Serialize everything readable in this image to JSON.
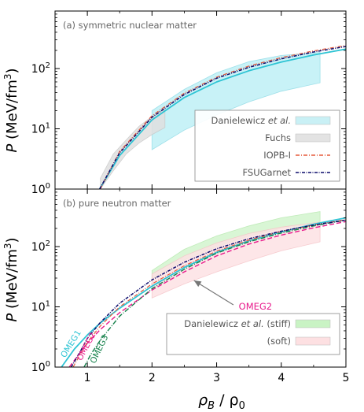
{
  "figure": {
    "xlabel_base": "ρ",
    "xlabel_sub": "B",
    "xlabel_sep": " / ρ",
    "xlabel_sub2": "0",
    "ylabel": "P",
    "ylabel_unit": "(MeV/fm",
    "ylabel_exp": "3",
    "ylabel_close": ")"
  },
  "chart_data": [
    {
      "type": "line",
      "panel": "a",
      "title": "(a) symmetric nuclear matter",
      "xlabel": "ρB / ρ0",
      "ylabel": "P (MeV/fm3)",
      "xlim": [
        0.5,
        5
      ],
      "ylim": [
        1,
        900
      ],
      "yscale": "log",
      "xticks": [
        "1",
        "2",
        "3",
        "4",
        "5"
      ],
      "yticks": [
        {
          "v": 1,
          "base": "10",
          "exp": "0"
        },
        {
          "v": 10,
          "base": "10",
          "exp": "1"
        },
        {
          "v": 100,
          "base": "10",
          "exp": "2"
        }
      ],
      "legend_position": "bottom-right",
      "legend": [
        {
          "label": "Danielewicz ",
          "label_italic": "et al.",
          "label_tail": "",
          "kind": "band",
          "color": "#c9f0f5"
        },
        {
          "label": "Fuchs",
          "label_italic": "",
          "label_tail": "",
          "kind": "band",
          "color": "#e3e3e3"
        },
        {
          "label": "IOPB-I",
          "label_italic": "",
          "label_tail": "",
          "kind": "line",
          "color": "#e55a3c",
          "dash": "5,2,1,2"
        },
        {
          "label": "FSUGarnet",
          "label_italic": "",
          "label_tail": "",
          "kind": "line",
          "color": "#0b0b6b",
          "dash": "4,1.5,1,1.5"
        }
      ],
      "bands": [
        {
          "name": "Danielewicz et al.",
          "color": "#bff0f6",
          "stroke": "#8fdbe6",
          "x": [
            2,
            2.5,
            3,
            3.5,
            4,
            4.6
          ],
          "lower": [
            4.5,
            9.5,
            17,
            28,
            42,
            58
          ],
          "upper": [
            20,
            45,
            85,
            130,
            165,
            185
          ]
        },
        {
          "name": "Fuchs",
          "color": "#e0e0e0",
          "stroke": "#c8c8c8",
          "x": [
            1.2,
            1.4,
            1.6,
            1.8,
            2.0,
            2.2
          ],
          "lower": [
            1.0,
            2.0,
            3.8,
            5.8,
            8.0,
            10.5
          ],
          "upper": [
            1.5,
            3.8,
            6.5,
            11,
            16,
            21
          ]
        }
      ],
      "series": [
        {
          "name": "OMEG1",
          "color": "#2ec4d4",
          "width": 1.8,
          "dash": "",
          "x": [
            1.19,
            1.5,
            2,
            2.5,
            3,
            3.5,
            4,
            4.5,
            5
          ],
          "y": [
            1.0,
            3.6,
            14,
            33,
            60,
            92,
            128,
            168,
            210
          ]
        },
        {
          "name": "IOPB-I",
          "color": "#e55a3c",
          "width": 1.2,
          "dash": "5,2,1,2",
          "x": [
            1.2,
            1.5,
            2,
            2.5,
            3,
            3.5,
            4,
            4.5,
            5
          ],
          "y": [
            1.0,
            4.2,
            16.5,
            39,
            72,
            110,
            152,
            196,
            242
          ]
        },
        {
          "name": "FSUGarnet",
          "color": "#0b0b6b",
          "width": 1.5,
          "dash": "4,1.5,1,1.5",
          "x": [
            1.19,
            1.5,
            2,
            2.5,
            3,
            3.5,
            4,
            4.5,
            5
          ],
          "y": [
            1.0,
            4.0,
            15.5,
            37,
            69,
            105,
            145,
            188,
            232
          ]
        }
      ],
      "inline_labels": []
    },
    {
      "type": "line",
      "panel": "b",
      "title": "(b) pure neutron matter",
      "xlabel": "ρB / ρ0",
      "ylabel": "P (MeV/fm3)",
      "xlim": [
        0.5,
        5
      ],
      "ylim": [
        1,
        900
      ],
      "yscale": "log",
      "xticks": [
        "1",
        "2",
        "3",
        "4",
        "5"
      ],
      "yticks": [
        {
          "v": 1,
          "base": "10",
          "exp": "0"
        },
        {
          "v": 10,
          "base": "10",
          "exp": "1"
        },
        {
          "v": 100,
          "base": "10",
          "exp": "2"
        }
      ],
      "legend_position": "bottom-right",
      "legend": [
        {
          "label": "Danielewicz ",
          "label_italic": "et al.",
          "label_tail": " (stiff)",
          "kind": "band",
          "color": "#c9f3c4"
        },
        {
          "label": "(soft)",
          "label_italic": "",
          "label_tail": "",
          "kind": "band",
          "color": "#fde0e2"
        }
      ],
      "bands": [
        {
          "name": "Danielewicz et al. (stiff)",
          "color": "#d3f5ce",
          "stroke": "#b5e8ad",
          "x": [
            2,
            2.5,
            3,
            3.5,
            4,
            4.6
          ],
          "lower": [
            29,
            60,
            100,
            150,
            200,
            250
          ],
          "upper": [
            40,
            90,
            150,
            220,
            300,
            380
          ]
        },
        {
          "name": "(soft)",
          "color": "#fde2e4",
          "stroke": "#f6c4c8",
          "x": [
            2,
            2.5,
            3,
            3.5,
            4,
            4.6
          ],
          "lower": [
            14,
            24,
            38,
            58,
            85,
            120
          ],
          "upper": [
            35,
            70,
            115,
            165,
            210,
            255
          ]
        }
      ],
      "series": [
        {
          "name": "OMEG1",
          "color": "#2ec4d4",
          "width": 1.8,
          "dash": "",
          "x": [
            0.6,
            0.8,
            1.0,
            1.2,
            1.5,
            2,
            2.5,
            3,
            3.5,
            4,
            4.5,
            5
          ],
          "y": [
            1.0,
            2.0,
            3.4,
            5.4,
            9.5,
            22,
            45,
            80,
            125,
            175,
            235,
            300
          ]
        },
        {
          "name": "OMEG2",
          "color": "#e8198b",
          "width": 1.4,
          "dash": "6,3",
          "x": [
            0.72,
            0.9,
            1.0,
            1.2,
            1.5,
            2,
            2.5,
            3,
            3.5,
            4,
            4.5,
            5
          ],
          "y": [
            1.0,
            1.8,
            2.5,
            4.2,
            8.0,
            19,
            38,
            70,
            110,
            155,
            205,
            260
          ]
        },
        {
          "name": "OMEG3",
          "color": "#14804a",
          "width": 1.4,
          "dash": "6,2,1,2",
          "x": [
            0.95,
            1.05,
            1.2,
            1.5,
            2,
            2.5,
            3,
            3.5,
            4,
            4.5,
            5
          ],
          "y": [
            1.0,
            1.6,
            2.8,
            7.0,
            20,
            42,
            78,
            120,
            168,
            220,
            275
          ]
        },
        {
          "name": "IOPB-I",
          "color": "#e55a3c",
          "width": 1.2,
          "dash": "5,2,1,2",
          "x": [
            0.78,
            0.9,
            1.0,
            1.2,
            1.5,
            2,
            2.5,
            3,
            3.5,
            4,
            4.5,
            5
          ],
          "y": [
            1.0,
            1.7,
            2.6,
            4.8,
            10,
            24,
            48,
            84,
            128,
            178,
            228,
            280
          ]
        },
        {
          "name": "FSUGarnet",
          "color": "#0b0b6b",
          "width": 1.5,
          "dash": "4,1.5,1,1.5",
          "x": [
            0.75,
            0.9,
            1.0,
            1.2,
            1.5,
            2,
            2.5,
            3,
            3.5,
            4,
            4.5,
            5
          ],
          "y": [
            1.0,
            1.9,
            3.0,
            5.5,
            11.5,
            28,
            55,
            92,
            135,
            180,
            228,
            275
          ]
        }
      ],
      "inline_labels": [
        {
          "text": "OMEG1",
          "color": "#2ec4d4",
          "x": 0.78,
          "y": 2.3,
          "rotate": -58
        },
        {
          "text": "OMEG2",
          "color": "#e8198b",
          "x": 1.02,
          "y": 2.1,
          "rotate": -62
        },
        {
          "text": "OMEG3",
          "color": "#14804a",
          "x": 1.22,
          "y": 1.9,
          "rotate": -64
        }
      ],
      "annotations": [
        {
          "text": "OMEG2",
          "color": "#e8198b",
          "text_x": 3.6,
          "text_y": 9.0,
          "arrow_x": 2.6,
          "arrow_y": 30
        }
      ]
    }
  ]
}
